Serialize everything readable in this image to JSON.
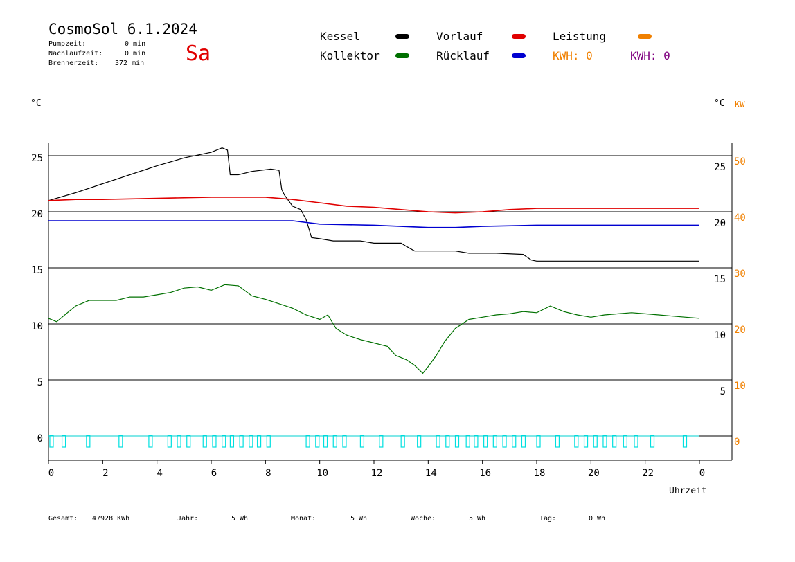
{
  "header": {
    "title": "CosmoSol 6.1.2024",
    "day": "Sa",
    "stats": [
      {
        "label": "Pumpzeit:",
        "value": "0 min"
      },
      {
        "label": "Nachlaufzeit:",
        "value": "0 min"
      },
      {
        "label": "Brennerzeit:",
        "value": "372 min"
      }
    ]
  },
  "legend": {
    "kessel": "Kessel",
    "kollektor": "Kollektor",
    "vorlauf": "Vorlauf",
    "ruecklauf": "Rücklauf",
    "leistung": "Leistung",
    "kwh1": "KWH: 0",
    "kwh2": "KWH: 0"
  },
  "axes": {
    "left_unit": "°C",
    "right_unit_c": "°C",
    "right_unit_kw": "KW",
    "xlabel": "Uhrzeit"
  },
  "footer": {
    "gesamt_label": "Gesamt:",
    "gesamt_value": "47928 KWh",
    "jahr_label": "Jahr:",
    "jahr_value": "5 Wh",
    "monat_label": "Monat:",
    "monat_value": "5 Wh",
    "woche_label": "Woche:",
    "woche_value": "5 Wh",
    "tag_label": "Tag:",
    "tag_value": "0 Wh"
  },
  "colors": {
    "kessel": "#000000",
    "kollektor": "#007000",
    "vorlauf": "#e00000",
    "ruecklauf": "#0000d0",
    "leistung": "#f08000",
    "kwh2": "#800080",
    "pump": "#00e0e0"
  },
  "chart_data": {
    "type": "line",
    "xlabel": "Uhrzeit",
    "x_ticks": [
      "0",
      "2",
      "4",
      "6",
      "8",
      "10",
      "12",
      "14",
      "16",
      "18",
      "20",
      "22",
      "0"
    ],
    "xlim": [
      0,
      24
    ],
    "left_axis": {
      "ticks": [
        0,
        5,
        10,
        15,
        20,
        25
      ],
      "ylim": [
        -2,
        27
      ]
    },
    "right_axis_upper": {
      "ticks": [
        20,
        25
      ],
      "ylim": [
        15,
        27.5
      ]
    },
    "right_axis_lower": {
      "ticks": [
        5,
        10,
        15
      ],
      "ylim": [
        0,
        15
      ]
    },
    "right_axis_kw": {
      "ticks": [
        0,
        10,
        20,
        30,
        40,
        50
      ]
    },
    "grid": true,
    "series": [
      {
        "name": "Kessel",
        "points": [
          [
            0,
            21
          ],
          [
            1,
            21.7
          ],
          [
            2,
            22.5
          ],
          [
            3,
            23.3
          ],
          [
            4,
            24.1
          ],
          [
            5,
            24.8
          ],
          [
            6,
            25.3
          ],
          [
            6.4,
            25.7
          ],
          [
            6.6,
            25.5
          ],
          [
            6.7,
            23.3
          ],
          [
            7,
            23.3
          ],
          [
            7.5,
            23.6
          ],
          [
            8.2,
            23.8
          ],
          [
            8.5,
            23.7
          ],
          [
            8.6,
            22
          ],
          [
            8.7,
            21.5
          ],
          [
            9,
            20.5
          ],
          [
            9.3,
            20.2
          ],
          [
            9.5,
            19.3
          ],
          [
            9.7,
            17.7
          ],
          [
            10,
            17.6
          ],
          [
            10.5,
            17.4
          ],
          [
            11.5,
            17.4
          ],
          [
            12,
            17.2
          ],
          [
            13,
            17.2
          ],
          [
            13.2,
            16.9
          ],
          [
            13.5,
            16.5
          ],
          [
            15,
            16.5
          ],
          [
            15.5,
            16.3
          ],
          [
            16.5,
            16.3
          ],
          [
            17.5,
            16.2
          ],
          [
            17.8,
            15.7
          ],
          [
            18,
            15.6
          ],
          [
            24,
            15.6
          ]
        ]
      },
      {
        "name": "Vorlauf",
        "points": [
          [
            0,
            21
          ],
          [
            1,
            21.1
          ],
          [
            2,
            21.1
          ],
          [
            4,
            21.2
          ],
          [
            6,
            21.3
          ],
          [
            7,
            21.3
          ],
          [
            8,
            21.3
          ],
          [
            9,
            21.1
          ],
          [
            10,
            20.8
          ],
          [
            11,
            20.5
          ],
          [
            12,
            20.4
          ],
          [
            13,
            20.2
          ],
          [
            14,
            20.0
          ],
          [
            15,
            19.9
          ],
          [
            16,
            20.0
          ],
          [
            17,
            20.2
          ],
          [
            18,
            20.3
          ],
          [
            20,
            20.3
          ],
          [
            22,
            20.3
          ],
          [
            24,
            20.3
          ]
        ]
      },
      {
        "name": "Rücklauf",
        "points": [
          [
            0,
            19.2
          ],
          [
            2,
            19.2
          ],
          [
            4,
            19.2
          ],
          [
            6,
            19.2
          ],
          [
            8,
            19.2
          ],
          [
            9,
            19.2
          ],
          [
            10,
            18.9
          ],
          [
            12,
            18.8
          ],
          [
            14,
            18.6
          ],
          [
            15,
            18.6
          ],
          [
            16,
            18.7
          ],
          [
            18,
            18.8
          ],
          [
            20,
            18.8
          ],
          [
            22,
            18.8
          ],
          [
            24,
            18.8
          ]
        ]
      },
      {
        "name": "Kollektor",
        "points": [
          [
            0,
            10.5
          ],
          [
            0.3,
            10.2
          ],
          [
            0.7,
            11
          ],
          [
            1,
            11.6
          ],
          [
            1.5,
            12.1
          ],
          [
            2,
            12.1
          ],
          [
            2.5,
            12.1
          ],
          [
            3,
            12.4
          ],
          [
            3.5,
            12.4
          ],
          [
            4,
            12.6
          ],
          [
            4.5,
            12.8
          ],
          [
            5,
            13.2
          ],
          [
            5.5,
            13.3
          ],
          [
            6,
            13
          ],
          [
            6.5,
            13.5
          ],
          [
            7,
            13.4
          ],
          [
            7.5,
            12.5
          ],
          [
            8,
            12.2
          ],
          [
            8.5,
            11.8
          ],
          [
            9,
            11.4
          ],
          [
            9.5,
            10.8
          ],
          [
            10,
            10.4
          ],
          [
            10.3,
            10.8
          ],
          [
            10.6,
            9.6
          ],
          [
            11,
            9
          ],
          [
            11.5,
            8.6
          ],
          [
            12,
            8.3
          ],
          [
            12.5,
            8.0
          ],
          [
            12.8,
            7.2
          ],
          [
            13.2,
            6.8
          ],
          [
            13.5,
            6.3
          ],
          [
            13.8,
            5.6
          ],
          [
            14,
            6.2
          ],
          [
            14.3,
            7.2
          ],
          [
            14.6,
            8.4
          ],
          [
            15,
            9.6
          ],
          [
            15.5,
            10.4
          ],
          [
            16,
            10.6
          ],
          [
            16.5,
            10.8
          ],
          [
            17,
            10.9
          ],
          [
            17.5,
            11.1
          ],
          [
            18,
            11.0
          ],
          [
            18.5,
            11.6
          ],
          [
            19,
            11.1
          ],
          [
            19.5,
            10.8
          ],
          [
            20,
            10.6
          ],
          [
            20.5,
            10.8
          ],
          [
            21,
            10.9
          ],
          [
            21.5,
            11.0
          ],
          [
            22,
            10.9
          ],
          [
            22.5,
            10.8
          ],
          [
            23,
            10.7
          ],
          [
            23.5,
            10.6
          ],
          [
            24,
            10.5
          ]
        ]
      },
      {
        "name": "Pumpe",
        "on_hours": [
          0.05,
          0.5,
          1.4,
          2.6,
          3.7,
          4.4,
          4.75,
          5.1,
          5.7,
          6.05,
          6.4,
          6.7,
          7.05,
          7.4,
          7.7,
          8.05,
          9.5,
          9.85,
          10.15,
          10.5,
          10.85,
          11.5,
          12.2,
          13.0,
          13.6,
          14.3,
          14.65,
          15.0,
          15.4,
          15.7,
          16.05,
          16.4,
          16.75,
          17.1,
          17.45,
          18.0,
          18.7,
          19.4,
          19.75,
          20.1,
          20.45,
          20.8,
          21.2,
          21.6,
          22.2,
          23.4
        ]
      }
    ]
  }
}
